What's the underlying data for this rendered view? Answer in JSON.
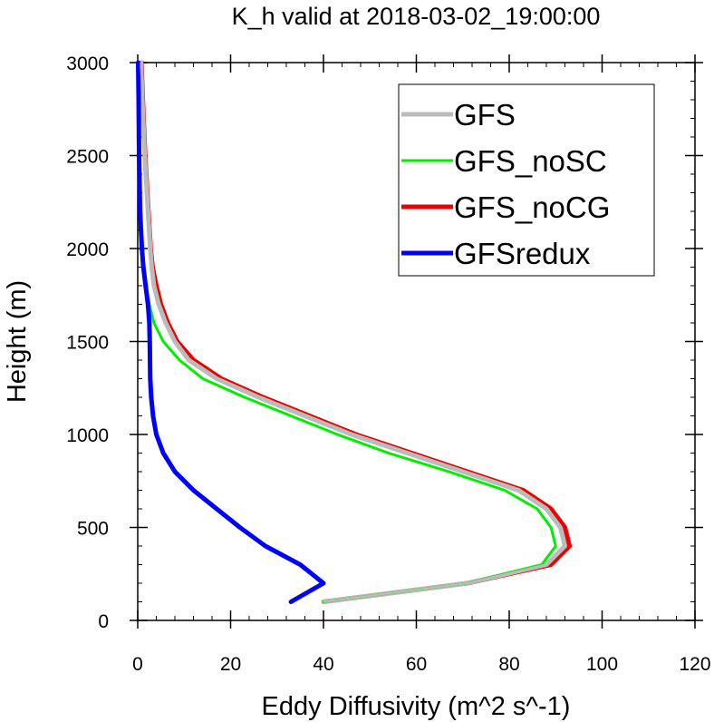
{
  "chart_data": {
    "type": "line",
    "title": "K_h valid at 2018-03-02_19:00:00",
    "xlabel": "Eddy Diffusivity (m^2 s^-1)",
    "ylabel": "Height (m)",
    "xlim": [
      0,
      120
    ],
    "ylim": [
      0,
      3000
    ],
    "xticks": [
      0,
      20,
      40,
      60,
      80,
      100,
      120
    ],
    "yticks": [
      0,
      500,
      1000,
      1500,
      2000,
      2500,
      3000
    ],
    "xtick_labels": [
      "0",
      "20",
      "40",
      "60",
      "80",
      "100",
      "120"
    ],
    "ytick_labels": [
      "0",
      "500",
      "1000",
      "1500",
      "2000",
      "2500",
      "3000"
    ],
    "grid": false,
    "legend_position": "top-right",
    "series": [
      {
        "name": "GFS",
        "color": "#bbbbbb",
        "points": [
          [
            40,
            100
          ],
          [
            71,
            200
          ],
          [
            88,
            300
          ],
          [
            92,
            400
          ],
          [
            91,
            500
          ],
          [
            88,
            600
          ],
          [
            82,
            700
          ],
          [
            70,
            800
          ],
          [
            58,
            900
          ],
          [
            46,
            1000
          ],
          [
            36,
            1100
          ],
          [
            26,
            1200
          ],
          [
            17,
            1300
          ],
          [
            11,
            1400
          ],
          [
            8,
            1500
          ],
          [
            6,
            1600
          ],
          [
            4.5,
            1700
          ],
          [
            3.5,
            1800
          ],
          [
            3,
            1900
          ],
          [
            2.7,
            2000
          ],
          [
            2.2,
            2200
          ],
          [
            1.5,
            2500
          ],
          [
            1,
            2800
          ],
          [
            0.7,
            3000
          ]
        ]
      },
      {
        "name": "GFS_noSC",
        "color": "#00ee00",
        "points": [
          [
            40,
            100
          ],
          [
            71,
            200
          ],
          [
            87,
            300
          ],
          [
            90,
            400
          ],
          [
            89,
            500
          ],
          [
            86,
            600
          ],
          [
            79,
            700
          ],
          [
            67,
            800
          ],
          [
            54,
            900
          ],
          [
            43,
            1000
          ],
          [
            33,
            1100
          ],
          [
            23,
            1200
          ],
          [
            14,
            1300
          ],
          [
            9,
            1400
          ],
          [
            5.5,
            1500
          ],
          [
            3.5,
            1600
          ],
          [
            2.5,
            1700
          ],
          [
            1.8,
            1800
          ],
          [
            1,
            2000
          ],
          [
            0.6,
            2200
          ],
          [
            0.3,
            2500
          ],
          [
            0.1,
            3000
          ]
        ]
      },
      {
        "name": "GFS_noCG",
        "color": "#ee0000",
        "points": [
          [
            40,
            100
          ],
          [
            71,
            200
          ],
          [
            89,
            300
          ],
          [
            93,
            400
          ],
          [
            92,
            500
          ],
          [
            89,
            600
          ],
          [
            83,
            700
          ],
          [
            71,
            800
          ],
          [
            59,
            900
          ],
          [
            47,
            1000
          ],
          [
            37,
            1100
          ],
          [
            27,
            1200
          ],
          [
            18,
            1300
          ],
          [
            12,
            1400
          ],
          [
            8.5,
            1500
          ],
          [
            6.5,
            1600
          ],
          [
            5,
            1700
          ],
          [
            4,
            1800
          ],
          [
            3.2,
            1900
          ],
          [
            2.8,
            2000
          ],
          [
            2.3,
            2200
          ],
          [
            1.6,
            2500
          ],
          [
            1.1,
            2800
          ],
          [
            0.8,
            3000
          ]
        ]
      },
      {
        "name": "GFSredux",
        "color": "#0000ff",
        "points": [
          [
            33,
            100
          ],
          [
            40,
            200
          ],
          [
            35,
            300
          ],
          [
            27.5,
            400
          ],
          [
            22,
            500
          ],
          [
            17,
            600
          ],
          [
            12,
            700
          ],
          [
            8,
            800
          ],
          [
            5.5,
            900
          ],
          [
            4,
            1000
          ],
          [
            3.3,
            1100
          ],
          [
            2.9,
            1200
          ],
          [
            2.7,
            1300
          ],
          [
            2.6,
            1500
          ],
          [
            2.5,
            1600
          ],
          [
            2.2,
            1700
          ],
          [
            1.7,
            1800
          ],
          [
            1.2,
            1900
          ],
          [
            0.9,
            2000
          ],
          [
            0.5,
            2200
          ],
          [
            0.3,
            2500
          ],
          [
            0.2,
            2800
          ],
          [
            0.1,
            3000
          ]
        ]
      }
    ]
  }
}
